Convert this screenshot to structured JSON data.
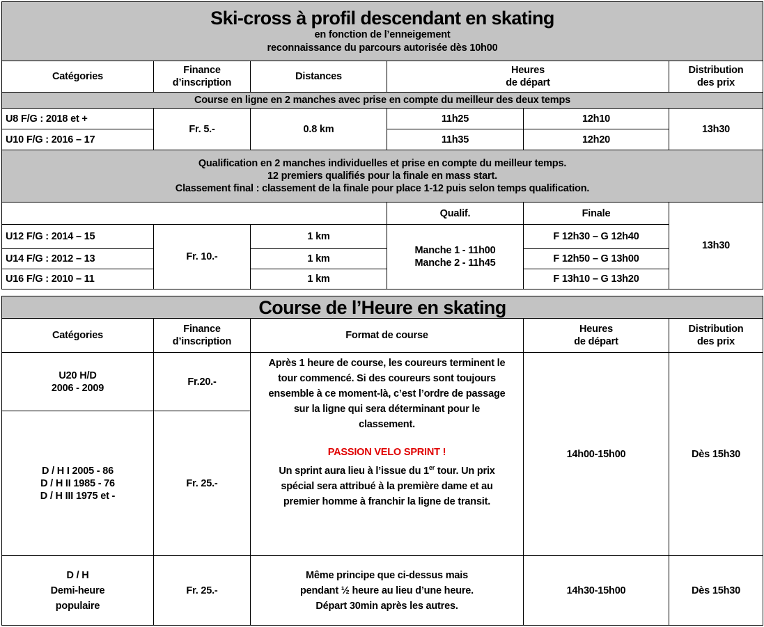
{
  "skicross": {
    "title": "Ski-cross à profil descendant en skating",
    "subtitle1": "en fonction de l’enneigement",
    "subtitle2": "reconnaissance du parcours autorisée dès 10h00",
    "headers": {
      "categories": "Catégories",
      "finance1": "Finance",
      "finance2": "d’inscription",
      "distances": "Distances",
      "heures1": "Heures",
      "heures2": "de départ",
      "distribution1": "Distribution",
      "distribution2": "des prix"
    },
    "section1": "Course en ligne en 2 manches avec prise en compte du meilleur des deux temps",
    "group1": {
      "rows": [
        {
          "cat": "U8 F/G :",
          "years": " 2018 et +",
          "t1": "11h25",
          "t2": "12h10"
        },
        {
          "cat": "U10 F/G :",
          "years": " 2016 – 17",
          "t1": "11h35",
          "t2": "12h20"
        }
      ],
      "fee": "Fr. 5.-",
      "distance": "0.8 km",
      "prize": "13h30"
    },
    "section2": {
      "line1": "Qualification en 2 manches individuelles et prise en compte du meilleur temps.",
      "line2": "12 premiers qualifiés pour la finale en mass start.",
      "line3": "Classement final : classement de la finale pour place 1-12 puis selon temps qualification."
    },
    "group2": {
      "qualif_label": "Qualif.",
      "finale_label": "Finale",
      "rows": [
        {
          "cat": "U12 F/G :",
          "years": " 2014 – 15",
          "distance": "1 km",
          "finale": "F 12h30 – G 12h40"
        },
        {
          "cat": "U14 F/G :",
          "years": " 2012 – 13",
          "distance": "1 km",
          "finale": "F 12h50 – G 13h00"
        },
        {
          "cat": "U16 F/G :",
          "years": " 2010 – 11",
          "distance": "1 km",
          "finale": "F 13h10 – G 13h20"
        }
      ],
      "fee": "Fr. 10.-",
      "manche1": "Manche 1 - 11h00",
      "manche2": "Manche 2 - 11h45",
      "prize": "13h30"
    }
  },
  "heure": {
    "title": "Course de l’Heure en skating",
    "headers": {
      "categories": "Catégories",
      "finance1": "Finance",
      "finance2": "d’inscription",
      "format": "Format de course",
      "heures1": "Heures",
      "heures2": "de départ",
      "distribution1": "Distribution",
      "distribution2": "des prix"
    },
    "u20": {
      "cat": "U20 H/D",
      "years": "2006 - 2009",
      "fee": "Fr.20.-"
    },
    "dh": {
      "cat1": "D / H I",
      "y1": " 2005 - 86",
      "cat2": "D / H II",
      "y2": " 1985 - 76",
      "cat3": "D / H III",
      "y3": " 1975 et -",
      "fee": "Fr. 25.-"
    },
    "format": {
      "p1": "Après 1 heure de course, les coureurs terminent le tour commencé. Si des coureurs sont toujours ensemble à ce moment-là, c’est l’ordre de passage sur la ligne qui sera déterminant pour le classement.",
      "sprint_title": "PASSION VELO SPRINT !",
      "sprint_a": "Un sprint aura lieu à l’issue du 1",
      "sprint_sup": "er",
      "sprint_b": " tour. Un prix spécial sera attribué à la première dame et au premier homme à franchir la ligne de transit."
    },
    "time": "14h00-15h00",
    "prize": "Dès 15h30",
    "demi": {
      "cat1": "D / H",
      "cat2": "Demi-heure",
      "cat3": "populaire",
      "fee": "Fr. 25.-",
      "format": "Même principe que ci-dessus mais pendant ½ heure au lieu d’une heure. Départ 30min après les autres.",
      "time": "14h30-15h00",
      "prize": "Dès 15h30"
    },
    "accent_red": "#e00000",
    "header_gray": "#c3c3c3"
  }
}
